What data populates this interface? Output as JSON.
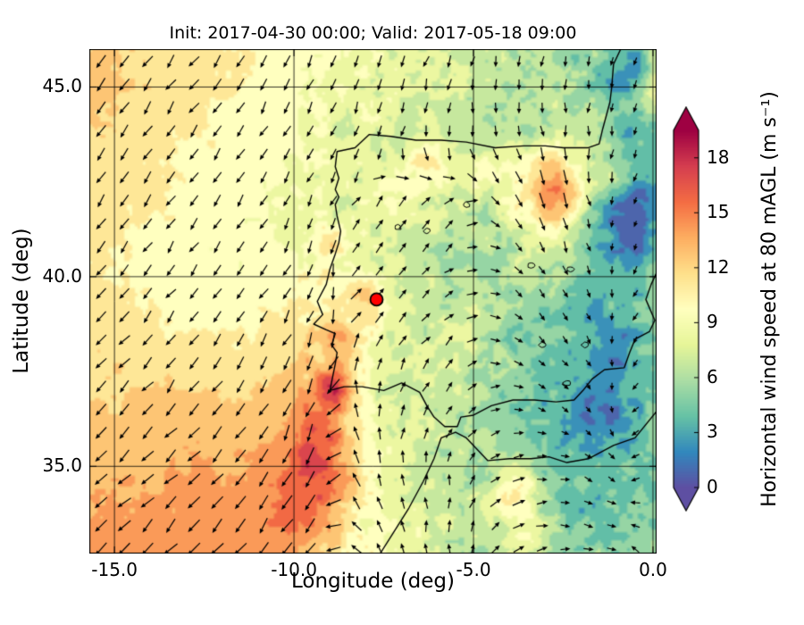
{
  "chart_data": {
    "type": "heatmap",
    "title": "Init: 2017-04-30 00:00; Valid: 2017-05-18 09:00",
    "xlabel": "Longitude (deg)",
    "ylabel": "Latitude (deg)",
    "xlim": [
      -15.7,
      0.1
    ],
    "ylim": [
      32.7,
      46.0
    ],
    "xticks": {
      "values": [
        -15,
        -10,
        -5,
        0
      ],
      "labels": [
        "-15.0",
        "-10.0",
        "-5.0",
        "0.0"
      ]
    },
    "yticks": {
      "values": [
        35,
        40,
        45
      ],
      "labels": [
        "35.0",
        "40.0",
        "45.0"
      ]
    },
    "colorbar": {
      "label": "Horizontal wind speed at 80 mAGL (m s⁻¹)",
      "tick_values": [
        0,
        3,
        6,
        9,
        12,
        15,
        18
      ],
      "tick_labels": [
        "0",
        "3",
        "6",
        "9",
        "12",
        "15",
        "18"
      ],
      "vmin": 0,
      "vmax": 19.5,
      "extend": "both",
      "under_color": "#5e4fa2",
      "over_color": "#9e0142",
      "colormap_stops": [
        [
          0,
          "#5e4fa2"
        ],
        [
          0.1,
          "#3288bd"
        ],
        [
          0.2,
          "#66c2a5"
        ],
        [
          0.3,
          "#abdda4"
        ],
        [
          0.4,
          "#e6f598"
        ],
        [
          0.5,
          "#ffffbf"
        ],
        [
          0.6,
          "#fee08b"
        ],
        [
          0.7,
          "#fdae61"
        ],
        [
          0.8,
          "#f46d43"
        ],
        [
          0.9,
          "#d53e4f"
        ],
        [
          1,
          "#9e0142"
        ]
      ]
    },
    "marker": {
      "lon": -7.7,
      "lat": 39.4,
      "fill": "#ff0000",
      "edge": "#000000",
      "radius_px": 7
    },
    "wind_speed_grid": {
      "lons": [
        -15.7,
        -14.7,
        -13.7,
        -12.7,
        -11.7,
        -10.7,
        -9.7,
        -8.7,
        -7.7,
        -6.7,
        -5.7,
        -4.7,
        -3.7,
        -2.7,
        -1.7,
        -0.7,
        0.3
      ],
      "lats": [
        46.0,
        45.0,
        44.0,
        43.0,
        42.0,
        41.0,
        40.0,
        39.0,
        38.0,
        37.0,
        36.0,
        35.0,
        34.0,
        32.8
      ],
      "values_ms": [
        [
          12,
          12,
          11.5,
          11,
          10.5,
          10,
          9.5,
          9,
          8.5,
          8,
          7.5,
          7,
          6.5,
          6,
          5.5,
          5,
          7
        ],
        [
          12.5,
          12,
          11.5,
          11,
          10.5,
          10,
          9.5,
          9,
          8.5,
          8,
          7.5,
          7,
          6.5,
          6,
          5,
          4.5,
          7
        ],
        [
          12,
          11.5,
          11,
          10.5,
          10,
          9.5,
          9,
          8.5,
          8,
          7.5,
          7,
          6.5,
          6.5,
          6.5,
          6,
          4,
          4
        ],
        [
          11.5,
          11,
          10.5,
          10,
          10,
          9.5,
          9,
          8.5,
          7.5,
          8,
          7.5,
          7,
          8.5,
          9,
          6,
          3.5,
          4
        ],
        [
          11.5,
          11,
          10.5,
          10,
          9.5,
          9,
          8.5,
          7.5,
          8.5,
          9,
          7,
          6.5,
          9.5,
          11,
          5,
          3,
          3.5
        ],
        [
          11,
          10.5,
          10,
          9.5,
          9.5,
          9,
          8.5,
          8,
          7.5,
          7.5,
          6.5,
          6,
          7.5,
          8.5,
          4.5,
          3,
          4
        ],
        [
          11,
          10.5,
          10,
          9.5,
          9.5,
          9.5,
          10,
          9,
          8,
          7,
          6,
          5.5,
          6,
          6,
          4,
          3.5,
          4.5
        ],
        [
          11,
          11,
          10.5,
          10,
          10,
          10.5,
          11,
          10,
          9,
          7.5,
          6.5,
          6,
          5.5,
          5,
          4,
          4,
          5
        ],
        [
          11.5,
          11.5,
          11,
          11,
          11,
          11,
          12,
          11,
          8.5,
          7,
          7,
          6,
          5,
          4.5,
          4,
          4,
          4.5
        ],
        [
          12,
          12,
          12,
          12,
          12,
          12,
          13,
          12.5,
          8,
          7,
          7,
          6,
          5,
          4,
          3.5,
          4,
          4.5
        ],
        [
          12.5,
          12.5,
          13,
          13,
          13,
          13,
          13.5,
          12,
          9,
          7.5,
          6.5,
          6,
          5,
          4,
          3.5,
          4,
          5
        ],
        [
          13,
          13,
          13,
          13.5,
          13.5,
          14,
          14,
          12,
          9,
          8,
          6.5,
          5.5,
          6,
          4.5,
          3.5,
          4.5,
          5
        ],
        [
          13.5,
          13.5,
          14,
          14,
          14,
          14,
          13.5,
          11,
          9,
          8,
          7,
          6,
          7.5,
          5,
          4,
          4.5,
          5
        ],
        [
          14,
          14,
          14,
          14.5,
          14.5,
          14,
          13,
          10.5,
          9,
          8,
          7,
          6,
          6.5,
          5,
          4.5,
          5,
          5
        ]
      ]
    },
    "hotspots": [
      [
        -8.9,
        37.05,
        5,
        0.35
      ],
      [
        -9.3,
        36.0,
        3,
        0.5
      ],
      [
        -9.1,
        34.9,
        3,
        0.6
      ],
      [
        -9.6,
        33.8,
        2.5,
        0.7
      ],
      [
        -7.95,
        39.5,
        4.5,
        0.35
      ],
      [
        -8.8,
        38.3,
        3,
        0.4
      ],
      [
        -8.9,
        40.9,
        2.5,
        0.4
      ],
      [
        -6.2,
        42.95,
        3.5,
        0.4
      ],
      [
        -4.8,
        42.75,
        3,
        0.35
      ],
      [
        -2.6,
        42.3,
        4,
        0.7
      ],
      [
        -1.2,
        42.6,
        3,
        0.35
      ],
      [
        -0.6,
        45.4,
        -3.5,
        0.5
      ],
      [
        -0.7,
        41.6,
        -2.5,
        0.8
      ],
      [
        -1.3,
        38.3,
        -2.2,
        0.6
      ],
      [
        -1.6,
        36.4,
        -2,
        0.7
      ],
      [
        -3.9,
        34.3,
        4.5,
        0.45
      ],
      [
        -3.4,
        32.9,
        2.5,
        0.5
      ],
      [
        0.1,
        45.0,
        3,
        0.5
      ],
      [
        -5.3,
        38.6,
        2,
        0.4
      ]
    ],
    "wind_direction_grid": {
      "lons": [
        -15.7,
        -13.7,
        -11.7,
        -9.7,
        -7.7,
        -5.7,
        -3.7,
        -1.7,
        0.3
      ],
      "lats": [
        46.0,
        43.8,
        41.6,
        39.4,
        37.2,
        35.0,
        32.8
      ],
      "dir_deg_math": [
        [
          235,
          235,
          238,
          240,
          245,
          255,
          265,
          260,
          250
        ],
        [
          233,
          235,
          238,
          242,
          250,
          265,
          280,
          270,
          250
        ],
        [
          230,
          233,
          236,
          242,
          60,
          45,
          300,
          280,
          230
        ],
        [
          228,
          231,
          235,
          245,
          50,
          35,
          320,
          290,
          210
        ],
        [
          226,
          229,
          233,
          248,
          80,
          55,
          340,
          300,
          190
        ],
        [
          224,
          227,
          231,
          244,
          100,
          80,
          10,
          330,
          170
        ],
        [
          222,
          225,
          229,
          240,
          115,
          95,
          25,
          350,
          160
        ]
      ]
    },
    "coastlines": [
      [
        [
          -0.9,
          46.0
        ],
        [
          -1.1,
          45.6
        ],
        [
          -1.15,
          45.0
        ],
        [
          -1.2,
          44.6
        ],
        [
          -1.4,
          43.9
        ],
        [
          -1.5,
          43.5
        ],
        [
          -1.8,
          43.4
        ],
        [
          -2.5,
          43.4
        ],
        [
          -3.0,
          43.45
        ],
        [
          -3.6,
          43.45
        ],
        [
          -4.4,
          43.4
        ],
        [
          -5.2,
          43.55
        ],
        [
          -5.9,
          43.6
        ],
        [
          -6.6,
          43.6
        ],
        [
          -7.3,
          43.7
        ],
        [
          -7.9,
          43.75
        ],
        [
          -8.3,
          43.4
        ],
        [
          -8.8,
          43.3
        ],
        [
          -8.85,
          42.9
        ],
        [
          -8.75,
          42.6
        ],
        [
          -8.85,
          42.3
        ],
        [
          -8.75,
          42.1
        ],
        [
          -8.85,
          41.9
        ],
        [
          -8.8,
          41.6
        ],
        [
          -8.7,
          41.2
        ],
        [
          -8.75,
          40.9
        ],
        [
          -8.85,
          40.6
        ],
        [
          -9.0,
          40.2
        ],
        [
          -9.1,
          39.8
        ],
        [
          -9.35,
          39.35
        ],
        [
          -9.2,
          39.0
        ],
        [
          -9.45,
          38.75
        ],
        [
          -9.1,
          38.6
        ],
        [
          -8.85,
          38.5
        ],
        [
          -8.95,
          38.2
        ],
        [
          -8.8,
          38.0
        ],
        [
          -8.85,
          37.7
        ],
        [
          -9.0,
          37.0
        ],
        [
          -8.6,
          37.1
        ],
        [
          -8.1,
          37.1
        ],
        [
          -7.5,
          37.0
        ],
        [
          -7.0,
          37.2
        ],
        [
          -6.5,
          36.95
        ],
        [
          -6.3,
          36.6
        ],
        [
          -6.1,
          36.3
        ],
        [
          -5.8,
          36.05
        ],
        [
          -5.45,
          36.05
        ],
        [
          -5.35,
          36.3
        ],
        [
          -5.0,
          36.35
        ],
        [
          -4.5,
          36.6
        ],
        [
          -3.9,
          36.75
        ],
        [
          -3.3,
          36.75
        ],
        [
          -2.7,
          36.7
        ],
        [
          -2.2,
          36.75
        ],
        [
          -1.95,
          37.0
        ],
        [
          -1.7,
          37.3
        ],
        [
          -1.35,
          37.55
        ],
        [
          -0.8,
          37.6
        ],
        [
          -0.65,
          38.0
        ],
        [
          -0.5,
          38.35
        ],
        [
          -0.1,
          38.55
        ],
        [
          0.05,
          38.85
        ],
        [
          -0.2,
          39.4
        ],
        [
          -0.05,
          39.8
        ],
        [
          0.1,
          40.1
        ],
        [
          0.3,
          40.5
        ],
        [
          0.5,
          40.6
        ]
      ],
      [
        [
          -7.6,
          32.7
        ],
        [
          -7.2,
          33.3
        ],
        [
          -6.8,
          33.9
        ],
        [
          -6.4,
          34.6
        ],
        [
          -6.1,
          35.2
        ],
        [
          -5.9,
          35.75
        ],
        [
          -5.5,
          35.9
        ],
        [
          -5.2,
          35.75
        ],
        [
          -4.6,
          35.15
        ],
        [
          -4.0,
          35.2
        ],
        [
          -3.4,
          35.2
        ],
        [
          -2.9,
          35.25
        ],
        [
          -2.4,
          35.1
        ],
        [
          -1.8,
          35.2
        ],
        [
          -1.1,
          35.55
        ],
        [
          -0.5,
          35.75
        ],
        [
          0.1,
          36.45
        ],
        [
          0.5,
          36.6
        ]
      ]
    ],
    "small_contours": [
      [
        -7.1,
        41.3
      ],
      [
        -6.3,
        41.2
      ],
      [
        -3.4,
        40.3
      ],
      [
        -2.3,
        40.2
      ],
      [
        -3.1,
        38.2
      ],
      [
        -1.9,
        38.2
      ],
      [
        -2.4,
        37.2
      ],
      [
        -5.2,
        41.9
      ]
    ],
    "quiver_style": {
      "spacing_px": 26,
      "color": "#000000"
    },
    "contour_interval_ms": 1.5
  }
}
